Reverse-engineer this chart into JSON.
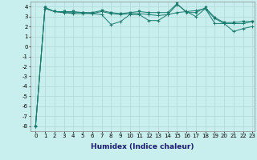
{
  "xlabel": "Humidex (Indice chaleur)",
  "xlim": [
    -0.5,
    23.2
  ],
  "ylim": [
    -8.5,
    4.5
  ],
  "yticks": [
    -8,
    -7,
    -6,
    -5,
    -4,
    -3,
    -2,
    -1,
    0,
    1,
    2,
    3,
    4
  ],
  "xticks": [
    0,
    1,
    2,
    3,
    4,
    5,
    6,
    7,
    8,
    9,
    10,
    11,
    12,
    13,
    14,
    15,
    16,
    17,
    18,
    19,
    20,
    21,
    22,
    23
  ],
  "line_color": "#1a7a6e",
  "bg_color": "#c8eeee",
  "grid_color": "#b0d8d8",
  "line1": [
    -8.0,
    3.8,
    3.5,
    3.4,
    3.3,
    3.3,
    3.3,
    3.2,
    2.2,
    2.5,
    3.2,
    3.2,
    2.6,
    2.6,
    3.2,
    4.2,
    3.5,
    3.6,
    3.8,
    2.3,
    2.3,
    1.5,
    1.8,
    2.0
  ],
  "line2": [
    -8.0,
    3.9,
    3.5,
    3.4,
    3.4,
    3.4,
    3.3,
    3.5,
    3.3,
    3.2,
    3.3,
    3.3,
    3.2,
    3.1,
    3.2,
    3.4,
    3.5,
    3.0,
    3.8,
    2.8,
    2.3,
    2.3,
    2.3,
    2.5
  ],
  "line3": [
    -8.0,
    3.9,
    3.5,
    3.5,
    3.5,
    3.4,
    3.4,
    3.6,
    3.4,
    3.3,
    3.4,
    3.5,
    3.4,
    3.4,
    3.4,
    4.3,
    3.4,
    3.4,
    3.9,
    2.9,
    2.4,
    2.4,
    2.5,
    2.5
  ],
  "tick_fontsize": 5.0,
  "xlabel_fontsize": 6.5
}
